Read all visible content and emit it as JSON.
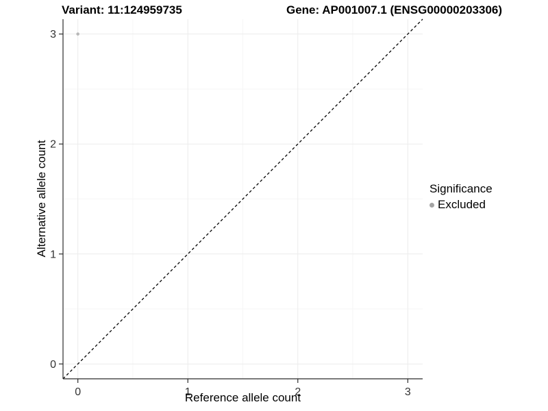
{
  "titles": {
    "variant": "Variant: 11:124959735",
    "gene": "Gene: AP001007.1 (ENSG00000203306)"
  },
  "chart_data": {
    "type": "scatter",
    "xlabel": "Reference allele count",
    "ylabel": "Alternative allele count",
    "xlim": [
      -0.135,
      3.135
    ],
    "ylim": [
      -0.135,
      3.135
    ],
    "x_ticks": [
      0,
      1,
      2,
      3
    ],
    "y_ticks": [
      0,
      1,
      2,
      3
    ],
    "x_minor_ticks": [
      0.5,
      1.5,
      2.5
    ],
    "y_minor_ticks": [
      0.5,
      1.5,
      2.5
    ],
    "grid": true,
    "points": [
      {
        "x": 0,
        "y": 3,
        "series": "Excluded"
      }
    ],
    "reference_line": {
      "type": "identity",
      "slope": 1,
      "intercept": 0,
      "style": "dashed"
    },
    "legend": {
      "title": "Significance",
      "position": "right",
      "entries": [
        {
          "label": "Excluded",
          "color": "#a3a3a3"
        }
      ]
    },
    "colors": {
      "point": "#b8b8b8",
      "legend_key": "#a3a3a3",
      "grid_major": "#ebebeb",
      "grid_minor": "#f6f6f6",
      "axis_line": "#2b2b2b",
      "reference_line": "#000000"
    }
  }
}
